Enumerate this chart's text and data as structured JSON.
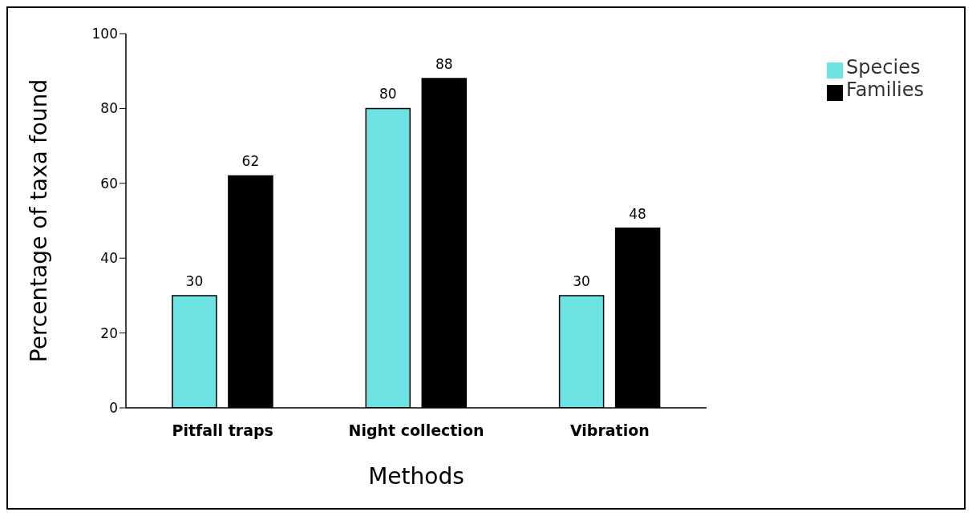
{
  "chart_data": {
    "type": "bar",
    "xlabel": "Methods",
    "ylabel": "Percentage of taxa found",
    "categories": [
      "Pitfall traps",
      "Night collection",
      "Vibration"
    ],
    "series": [
      {
        "name": "Species",
        "color": "#6ce2e2",
        "values": [
          30,
          80,
          30
        ]
      },
      {
        "name": "Families",
        "color": "#000000",
        "values": [
          62,
          88,
          48
        ]
      }
    ],
    "ylim": [
      0,
      100
    ],
    "yticks": [
      0,
      20,
      40,
      60,
      80,
      100
    ],
    "grid": false,
    "legend": "top right",
    "data_labels": true
  }
}
